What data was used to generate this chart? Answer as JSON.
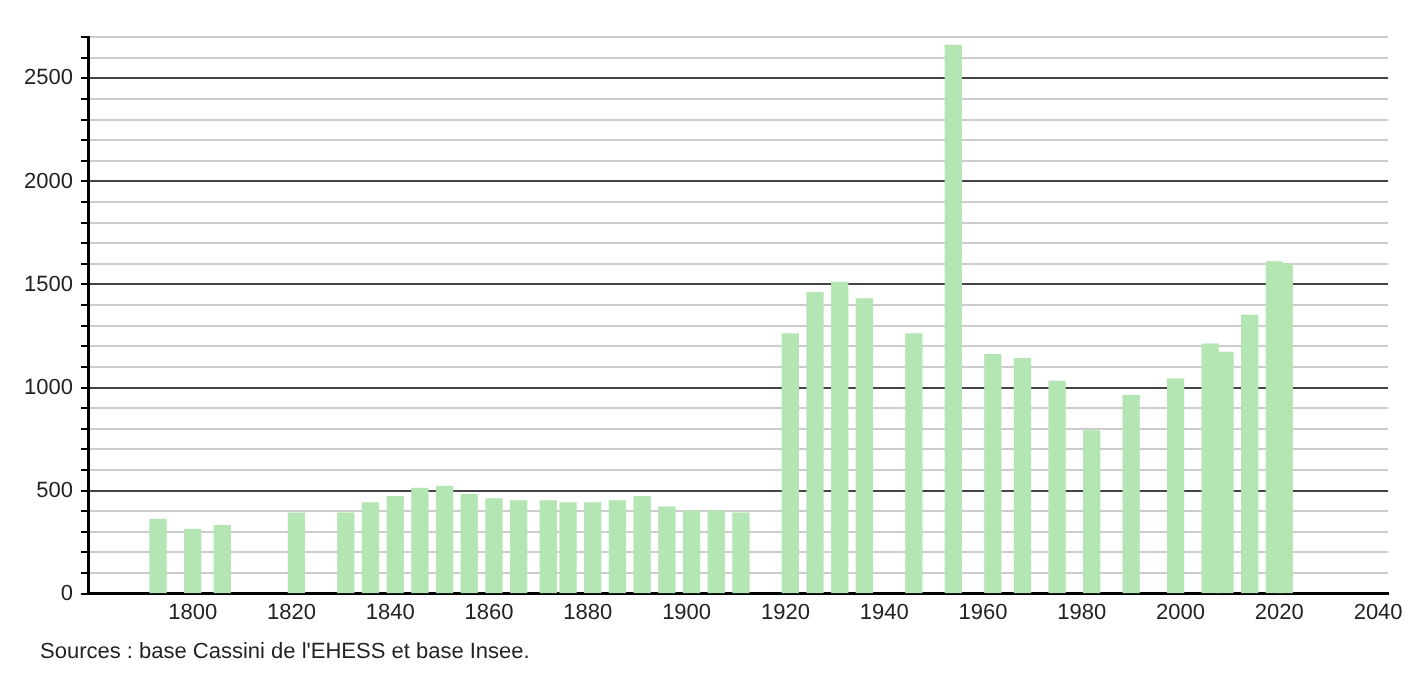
{
  "chart_data": {
    "type": "bar",
    "x": [
      1793,
      1800,
      1806,
      1821,
      1831,
      1836,
      1841,
      1846,
      1851,
      1856,
      1861,
      1866,
      1872,
      1876,
      1881,
      1886,
      1891,
      1896,
      1901,
      1906,
      1911,
      1921,
      1926,
      1931,
      1936,
      1946,
      1954,
      1962,
      1968,
      1975,
      1982,
      1990,
      1999,
      2006,
      2009,
      2014,
      2019,
      2021
    ],
    "values": [
      360,
      310,
      330,
      390,
      390,
      440,
      470,
      510,
      520,
      480,
      460,
      450,
      450,
      440,
      440,
      450,
      470,
      420,
      400,
      400,
      390,
      1260,
      1460,
      1510,
      1430,
      1260,
      2660,
      1160,
      1140,
      1030,
      790,
      960,
      1040,
      1210,
      1170,
      1350,
      1610,
      1600
    ],
    "color": "#b3e6b3",
    "xlim": [
      1779,
      2042
    ],
    "xticks": [
      1800,
      1820,
      1840,
      1860,
      1880,
      1900,
      1920,
      1940,
      1960,
      1980,
      2000,
      2020,
      2040
    ],
    "ylim": [
      0,
      2700
    ],
    "yticks": [
      0,
      {
        "value": 100,
        "label": null
      },
      {
        "value": 200,
        "label": null
      },
      {
        "value": 300,
        "label": null
      },
      {
        "value": 400,
        "label": null
      },
      500,
      {
        "value": 600,
        "label": null
      },
      {
        "value": 700,
        "label": null
      },
      {
        "value": 800,
        "label": null
      },
      {
        "value": 900,
        "label": null
      },
      1000,
      {
        "value": 1100,
        "label": null
      },
      {
        "value": 1200,
        "label": null
      },
      {
        "value": 1300,
        "label": null
      },
      {
        "value": 1400,
        "label": null
      },
      1500,
      {
        "value": 1600,
        "label": null
      },
      {
        "value": 1700,
        "label": null
      },
      {
        "value": 1800,
        "label": null
      },
      {
        "value": 1900,
        "label": null
      },
      2000,
      {
        "value": 2100,
        "label": null
      },
      {
        "value": 2200,
        "label": null
      },
      {
        "value": 2300,
        "label": null
      },
      {
        "value": 2400,
        "label": null
      },
      2500,
      {
        "value": 2600,
        "label": null
      },
      {
        "value": 2700,
        "label": null
      }
    ],
    "grid": "y",
    "annotations": [
      "Sources : base Cassini de l'EHESS et base Insee."
    ]
  }
}
